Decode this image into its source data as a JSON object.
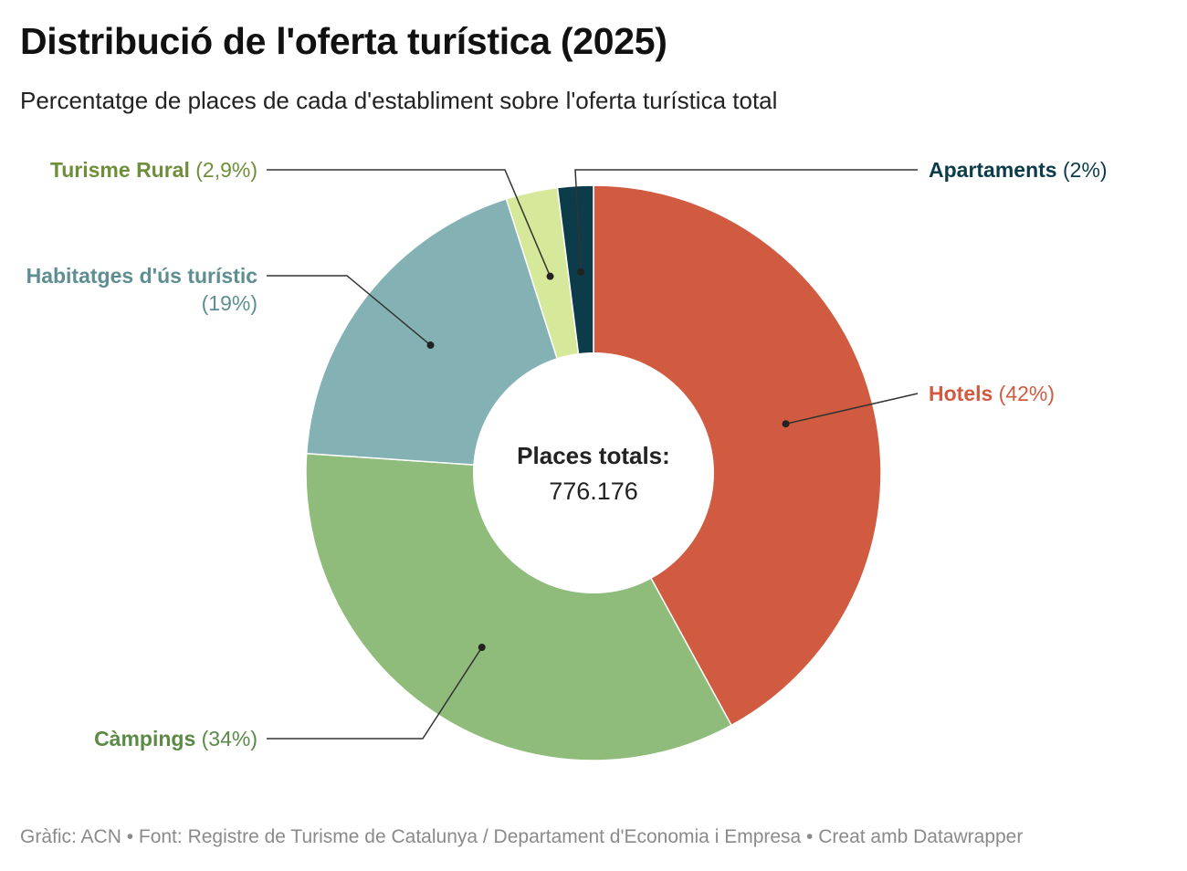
{
  "title": "Distribució de l'oferta turística (2025)",
  "subtitle": "Percentatge de places de cada d'establiment sobre l'oferta turística total",
  "footer": "Gràfic: ACN • Font: Registre de Turisme de Catalunya / Departament d'Economia i Empresa  • Creat amb Datawrapper",
  "center": {
    "label": "Places totals:",
    "value": "776.176"
  },
  "chart_data": {
    "type": "pie",
    "donut": true,
    "slices": [
      {
        "name": "Hotels",
        "value": 42,
        "label": "(42%)",
        "color": "#d05b40"
      },
      {
        "name": "Càmpings",
        "value": 34,
        "label": "(34%)",
        "color": "#8fbc7b",
        "text_color": "#5a8a45"
      },
      {
        "name": "Habitatges d'ús turístic",
        "value": 19,
        "label": "(19%)",
        "color": "#84b1b4",
        "text_color": "#5e8e92"
      },
      {
        "name": "Turisme Rural",
        "value": 2.9,
        "label": "(2,9%)",
        "color": "#d6e89a",
        "text_color": "#6f8e3a"
      },
      {
        "name": "Apartaments",
        "value": 2,
        "label": "(2%)",
        "color": "#0c3b4a",
        "text_color": "#0c3b4a"
      }
    ]
  }
}
